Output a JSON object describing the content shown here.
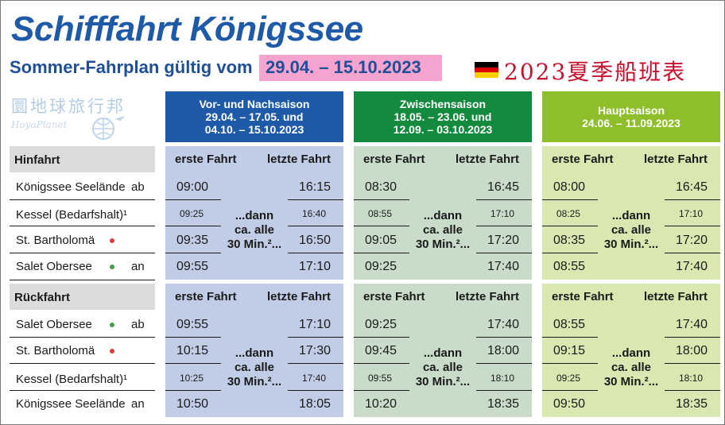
{
  "title": "Schifffahrt Königssee",
  "subtitle": "Sommer-Fahrplan gültig vom",
  "validity": "29.04. – 15.10.2023",
  "cn_title": "2023夏季船班表",
  "watermark": {
    "text": "圜地球旅行邦",
    "sub": "HoyaPlanet"
  },
  "colors": {
    "title": "#1f5aa8",
    "highlight": "#f5a3cf",
    "season1": "#1f5aa8",
    "season1_bg": "#c1cde6",
    "season2": "#148a3e",
    "season2_bg": "#c8dcc9",
    "season3": "#8fbe2b",
    "season3_bg": "#d9e8b0"
  },
  "seasons": [
    {
      "name": "Vor- und Nachsaison",
      "line2": "29.04. – 17.05. und",
      "line3": "04.10. – 15.10.2023"
    },
    {
      "name": "Zwischensaison",
      "line2": "18.05. – 23.06. und",
      "line3": "12.09. – 03.10.2023"
    },
    {
      "name": "Hauptsaison",
      "line2": "24.06. – 11.09.2023",
      "line3": ""
    }
  ],
  "labels": {
    "hinfahrt": "Hinfahrt",
    "rueckfahrt": "Rückfahrt",
    "erste": "erste Fahrt",
    "letzte": "letzte Fahrt",
    "dann1": "...dann",
    "dann2": "ca. alle",
    "dann3": "30 Min.²..."
  },
  "hinfahrt_rows": [
    {
      "stop": "Königssee Seelände",
      "suffix": "ab",
      "dot": "",
      "small": false
    },
    {
      "stop": "Kessel (Bedarfshalt)¹",
      "suffix": "",
      "dot": "",
      "small": true
    },
    {
      "stop": "St. Bartholomä",
      "suffix": "",
      "dot": "red",
      "small": false
    },
    {
      "stop": "Salet Obersee",
      "suffix": "an",
      "dot": "green",
      "small": false
    }
  ],
  "rueckfahrt_rows": [
    {
      "stop": "Salet Obersee",
      "suffix": "ab",
      "dot": "green",
      "small": false
    },
    {
      "stop": "St. Bartholomä",
      "suffix": "",
      "dot": "red",
      "small": false
    },
    {
      "stop": "Kessel (Bedarfshalt)¹",
      "suffix": "",
      "dot": "",
      "small": true
    },
    {
      "stop": "Königssee Seelände",
      "suffix": "an",
      "dot": "",
      "small": false
    }
  ],
  "hinfahrt_times": [
    {
      "first": [
        "09:00",
        "09:25",
        "09:35",
        "09:55"
      ],
      "last": [
        "16:15",
        "16:40",
        "16:50",
        "17:10"
      ]
    },
    {
      "first": [
        "08:30",
        "08:55",
        "09:05",
        "09:25"
      ],
      "last": [
        "16:45",
        "17:10",
        "17:20",
        "17:40"
      ]
    },
    {
      "first": [
        "08:00",
        "08:25",
        "08:35",
        "08:55"
      ],
      "last": [
        "16:45",
        "17:10",
        "17:20",
        "17:40"
      ]
    }
  ],
  "rueckfahrt_times": [
    {
      "first": [
        "09:55",
        "10:15",
        "10:25",
        "10:50"
      ],
      "last": [
        "17:10",
        "17:30",
        "17:40",
        "18:05"
      ]
    },
    {
      "first": [
        "09:25",
        "09:45",
        "09:55",
        "10:20"
      ],
      "last": [
        "17:40",
        "18:00",
        "18:10",
        "18:35"
      ]
    },
    {
      "first": [
        "08:55",
        "09:15",
        "09:25",
        "09:50"
      ],
      "last": [
        "17:40",
        "18:00",
        "18:10",
        "18:35"
      ]
    }
  ]
}
